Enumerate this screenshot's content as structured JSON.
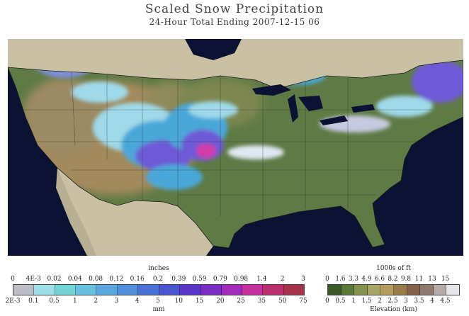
{
  "header": {
    "title": "Scaled Snow Precipitation",
    "subtitle": "24-Hour Total Ending 2007-12-15 06"
  },
  "map": {
    "region": "Contiguous United States",
    "colors": {
      "ocean": "#0c1233",
      "land_north": "#c9c0a3",
      "lowland": "#5f7a45",
      "highland": "#a28a5c",
      "snow_light": "#9fd9ea",
      "snow_mid": "#4aa7d8",
      "snow_heavy": "#6e5ad6",
      "snow_peak": "#d23aa8"
    }
  },
  "legend_precip": {
    "top_unit": "inches",
    "bottom_unit": "mm",
    "top_ticks": [
      "0",
      "4E-3",
      "0.02",
      "0.04",
      "0.08",
      "0.12",
      "0.16",
      "0.2",
      "0.39",
      "0.59",
      "0.79",
      "0.98",
      "1.4",
      "2",
      "3"
    ],
    "bottom_ticks": [
      "2E-3",
      "0.1",
      "0.5",
      "1",
      "2",
      "3",
      "4",
      "5",
      "10",
      "15",
      "20",
      "25",
      "35",
      "50",
      "75"
    ],
    "colors": [
      "#bdbdc8",
      "#9edfe8",
      "#74d3d4",
      "#67c0df",
      "#5aa6df",
      "#4f8fdc",
      "#4b72d6",
      "#4a55d0",
      "#5a35c9",
      "#7a2dc4",
      "#a42bbb",
      "#c7309f",
      "#b82f6b",
      "#a5314b"
    ]
  },
  "legend_elev": {
    "top_unit": "1000s of ft",
    "bottom_unit": "Elevation (km)",
    "top_ticks": [
      "0",
      "1.6",
      "3.3",
      "4.9",
      "6.6",
      "8.2",
      "9.8",
      "11",
      "13",
      "15"
    ],
    "bottom_ticks": [
      "0",
      "0.5",
      "1",
      "1.5",
      "2",
      "2.5",
      "3",
      "3.5",
      "4",
      "4.5"
    ],
    "colors": [
      "#3c5a28",
      "#5b7a3a",
      "#86934f",
      "#a7a565",
      "#b59a5e",
      "#9a7a4b",
      "#836248",
      "#8e7a6e",
      "#b4aaa8",
      "#e8e5ea"
    ]
  }
}
